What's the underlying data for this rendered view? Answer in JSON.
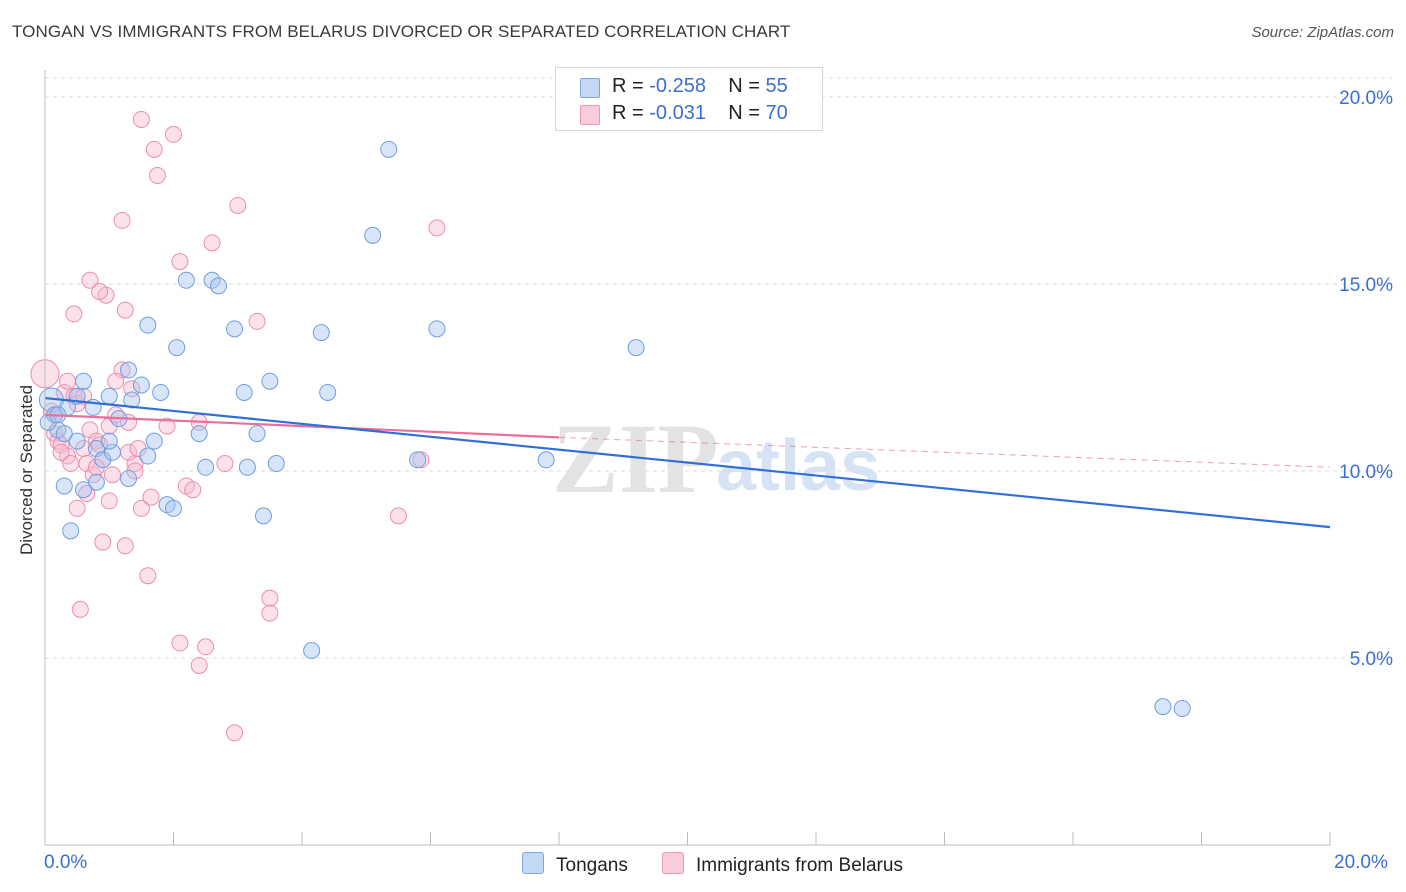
{
  "header": {
    "title": "TONGAN VS IMMIGRANTS FROM BELARUS DIVORCED OR SEPARATED CORRELATION CHART",
    "source": "Source: ZipAtlas.com"
  },
  "watermark": {
    "zip": "ZIP",
    "atlas": "atlas"
  },
  "legend": {
    "rows": [
      {
        "r_label": "R = ",
        "r_value": "-0.258",
        "n_label": "N = ",
        "n_value": "55"
      },
      {
        "r_label": "R = ",
        "r_value": "-0.031",
        "n_label": "N = ",
        "n_value": "70"
      }
    ]
  },
  "colors": {
    "tongans_fill": "#a9c6f0",
    "tongans_stroke": "#6f9ee0",
    "tongans_line": "#2f6fd6",
    "belarus_fill": "#f7bcd0",
    "belarus_stroke": "#ec8eae",
    "belarus_line": "#e8709a",
    "tick_label": "#3b6fd0"
  },
  "chart_data": {
    "type": "scatter",
    "title": "TONGAN VS IMMIGRANTS FROM BELARUS DIVORCED OR SEPARATED CORRELATION CHART",
    "xlabel": "",
    "ylabel": "Divorced or Separated",
    "xlim": [
      0,
      20
    ],
    "ylim": [
      0,
      21
    ],
    "x_tick_labels": [
      "0.0%",
      "20.0%"
    ],
    "y_ticks": [
      5,
      10,
      15,
      20
    ],
    "y_tick_labels": [
      "5.0%",
      "10.0%",
      "15.0%",
      "20.0%"
    ],
    "grid": true,
    "legend_position": "bottom",
    "series": [
      {
        "name": "Tongans",
        "r": -0.258,
        "n": 55,
        "trend": {
          "x": [
            0,
            20
          ],
          "y": [
            11.95,
            8.5
          ]
        },
        "points": [
          [
            0.1,
            11.9
          ],
          [
            0.15,
            11.5
          ],
          [
            0.2,
            11.1
          ],
          [
            0.3,
            11.0
          ],
          [
            0.35,
            11.7
          ],
          [
            0.5,
            12.0
          ],
          [
            0.5,
            10.8
          ],
          [
            0.6,
            12.4
          ],
          [
            0.75,
            11.7
          ],
          [
            0.8,
            10.6
          ],
          [
            0.9,
            10.3
          ],
          [
            1.0,
            12.0
          ],
          [
            1.05,
            10.5
          ],
          [
            1.15,
            11.4
          ],
          [
            1.3,
            9.8
          ],
          [
            1.35,
            11.9
          ],
          [
            1.5,
            12.3
          ],
          [
            1.6,
            10.4
          ],
          [
            1.8,
            12.1
          ],
          [
            1.9,
            9.1
          ],
          [
            2.05,
            13.3
          ],
          [
            2.2,
            15.1
          ],
          [
            2.4,
            11.0
          ],
          [
            2.6,
            15.1
          ],
          [
            2.7,
            14.95
          ],
          [
            2.95,
            13.8
          ],
          [
            3.1,
            12.1
          ],
          [
            3.3,
            11.0
          ],
          [
            3.5,
            12.4
          ],
          [
            3.6,
            10.2
          ],
          [
            4.3,
            13.7
          ],
          [
            4.4,
            12.1
          ],
          [
            5.1,
            16.3
          ],
          [
            6.1,
            13.8
          ],
          [
            4.15,
            5.2
          ],
          [
            5.35,
            18.6
          ],
          [
            7.8,
            10.3
          ],
          [
            9.2,
            13.3
          ],
          [
            17.4,
            3.7
          ],
          [
            17.7,
            3.65
          ],
          [
            0.05,
            11.3
          ],
          [
            0.2,
            11.5
          ],
          [
            0.4,
            8.4
          ],
          [
            0.8,
            9.7
          ],
          [
            1.0,
            10.8
          ],
          [
            1.3,
            12.7
          ],
          [
            1.6,
            13.9
          ],
          [
            1.7,
            10.8
          ],
          [
            2.0,
            9.0
          ],
          [
            2.5,
            10.1
          ],
          [
            3.15,
            10.1
          ],
          [
            3.4,
            8.8
          ],
          [
            5.8,
            10.3
          ],
          [
            0.3,
            9.6
          ],
          [
            0.6,
            9.5
          ]
        ]
      },
      {
        "name": "Immigrants from Belarus",
        "r": -0.031,
        "n": 70,
        "trend": {
          "x": [
            0,
            8.0
          ],
          "y": [
            11.5,
            10.9
          ]
        },
        "trend_extension": {
          "x": [
            8.0,
            20
          ],
          "y": [
            10.9,
            10.1
          ]
        },
        "points": [
          [
            0.0,
            12.6
          ],
          [
            0.1,
            11.6
          ],
          [
            0.15,
            11.0
          ],
          [
            0.2,
            10.8
          ],
          [
            0.25,
            10.7
          ],
          [
            0.3,
            12.1
          ],
          [
            0.35,
            10.4
          ],
          [
            0.4,
            10.2
          ],
          [
            0.45,
            12.0
          ],
          [
            0.5,
            11.8
          ],
          [
            0.6,
            10.6
          ],
          [
            0.65,
            10.2
          ],
          [
            0.7,
            11.1
          ],
          [
            0.75,
            9.9
          ],
          [
            0.8,
            10.8
          ],
          [
            0.85,
            10.7
          ],
          [
            0.9,
            10.3
          ],
          [
            1.0,
            11.2
          ],
          [
            1.05,
            9.9
          ],
          [
            1.1,
            11.5
          ],
          [
            1.2,
            12.7
          ],
          [
            1.3,
            11.3
          ],
          [
            1.4,
            10.2
          ],
          [
            1.5,
            9.0
          ],
          [
            1.6,
            7.2
          ],
          [
            1.7,
            18.6
          ],
          [
            1.9,
            11.2
          ],
          [
            2.0,
            19.0
          ],
          [
            2.2,
            9.6
          ],
          [
            2.4,
            11.3
          ],
          [
            2.6,
            16.1
          ],
          [
            2.8,
            10.2
          ],
          [
            3.0,
            17.1
          ],
          [
            3.3,
            14.0
          ],
          [
            3.5,
            6.6
          ],
          [
            1.75,
            17.9
          ],
          [
            1.5,
            19.4
          ],
          [
            1.2,
            16.7
          ],
          [
            1.25,
            14.3
          ],
          [
            0.95,
            14.7
          ],
          [
            0.7,
            15.1
          ],
          [
            1.3,
            10.5
          ],
          [
            0.55,
            6.3
          ],
          [
            1.25,
            8.0
          ],
          [
            2.5,
            5.3
          ],
          [
            2.4,
            4.8
          ],
          [
            3.5,
            6.2
          ],
          [
            2.95,
            3.0
          ],
          [
            5.5,
            8.8
          ],
          [
            6.1,
            16.5
          ],
          [
            5.85,
            10.3
          ],
          [
            2.1,
            15.6
          ],
          [
            1.65,
            9.3
          ],
          [
            0.5,
            9.0
          ],
          [
            1.0,
            9.2
          ],
          [
            0.35,
            12.4
          ],
          [
            0.15,
            11.5
          ],
          [
            0.25,
            10.5
          ],
          [
            0.45,
            14.2
          ],
          [
            0.6,
            12.0
          ],
          [
            0.8,
            10.1
          ],
          [
            0.9,
            8.1
          ],
          [
            1.1,
            12.4
          ],
          [
            1.35,
            12.2
          ],
          [
            1.4,
            10.0
          ],
          [
            2.3,
            9.5
          ],
          [
            2.1,
            5.4
          ],
          [
            1.45,
            10.6
          ],
          [
            0.65,
            9.4
          ],
          [
            0.85,
            14.8
          ]
        ]
      }
    ]
  },
  "bottom_legend": {
    "tongans": "Tongans",
    "belarus": "Immigrants from Belarus"
  }
}
